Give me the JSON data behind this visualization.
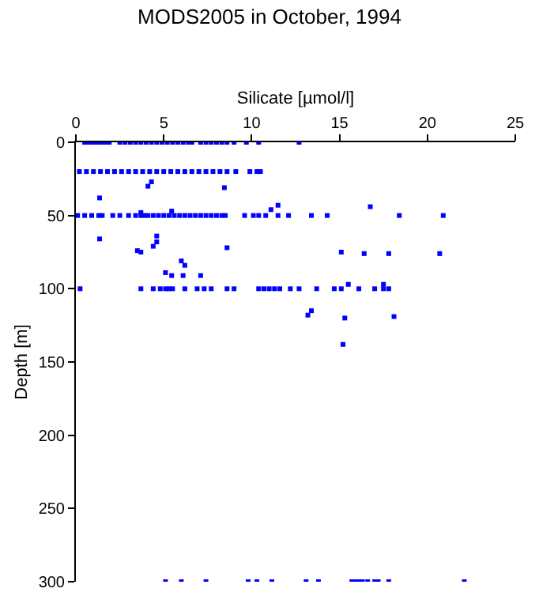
{
  "chart_data": {
    "type": "scatter",
    "title": "MODS2005 in October, 1994",
    "xlabel": "Silicate [µmol/l]",
    "ylabel": "Depth [m]",
    "xlim": [
      0,
      25
    ],
    "xticks": [
      0,
      5,
      10,
      15,
      20,
      25
    ],
    "ylim": [
      300,
      0
    ],
    "yticks": [
      0,
      50,
      100,
      150,
      200,
      250,
      300
    ],
    "marker": "square",
    "series": [
      {
        "color": "#0000ff",
        "x": [
          0.5,
          0.7,
          0.9,
          1.1,
          1.3,
          1.5,
          1.7,
          1.9,
          2.5,
          2.8,
          3.1,
          3.4,
          3.7,
          4.0,
          4.3,
          4.6,
          4.9,
          5.2,
          5.5,
          5.8,
          6.1,
          6.4,
          6.6,
          7.1,
          7.4,
          7.7,
          8.0,
          8.3,
          8.6,
          9.0,
          9.7,
          10.4,
          12.7,
          0.2,
          0.6,
          1.0,
          1.4,
          1.8,
          2.2,
          2.6,
          3.0,
          3.4,
          3.8,
          4.2,
          4.6,
          5.0,
          5.4,
          5.8,
          6.2,
          6.6,
          7.0,
          7.4,
          7.8,
          8.2,
          8.6,
          9.1,
          9.9,
          10.3,
          10.5,
          0.1,
          0.5,
          0.9,
          1.3,
          1.5,
          2.1,
          2.5,
          3.0,
          3.4,
          3.7,
          3.9,
          4.1,
          4.4,
          4.7,
          5.0,
          5.3,
          5.6,
          5.9,
          6.2,
          6.5,
          6.8,
          7.1,
          7.4,
          7.7,
          8.0,
          8.3,
          8.5,
          9.6,
          10.1,
          10.4,
          10.8,
          11.5,
          12.1,
          13.4,
          14.3,
          18.4,
          20.9,
          1.35,
          4.1,
          4.3,
          8.45,
          1.35,
          3.7,
          5.45,
          3.5,
          3.7,
          4.6,
          4.6,
          4.4,
          8.6,
          11.1,
          11.5,
          16.75,
          6.0,
          6.2,
          5.1,
          5.45,
          6.1,
          7.1,
          15.1,
          16.4,
          17.8,
          20.7,
          0.24,
          3.7,
          4.4,
          4.8,
          5.1,
          5.3,
          5.5,
          6.2,
          6.9,
          7.3,
          7.7,
          8.6,
          9.0,
          10.4,
          10.7,
          11.0,
          11.3,
          11.6,
          12.2,
          12.7,
          13.7,
          14.7,
          15.1,
          16.1,
          17.0,
          17.5,
          17.8,
          15.5,
          17.5,
          13.4,
          13.2,
          15.3,
          18.1,
          15.2,
          5.1,
          6.0,
          7.4,
          9.8,
          10.3,
          11.15,
          13.1,
          13.8,
          15.7,
          15.9,
          16.1,
          16.3,
          16.6,
          17.0,
          17.2,
          17.8,
          22.1
        ],
        "values": [
          0,
          0,
          0,
          0,
          0,
          0,
          0,
          0,
          0,
          0,
          0,
          0,
          0,
          0,
          0,
          0,
          0,
          0,
          0,
          0,
          0,
          0,
          0,
          0,
          0,
          0,
          0,
          0,
          0,
          0,
          0,
          0,
          0,
          20,
          20,
          20,
          20,
          20,
          20,
          20,
          20,
          20,
          20,
          20,
          20,
          20,
          20,
          20,
          20,
          20,
          20,
          20,
          20,
          20,
          20,
          20,
          20,
          20,
          20,
          50,
          50,
          50,
          50,
          50,
          50,
          50,
          50,
          50,
          50,
          50,
          50,
          50,
          50,
          50,
          50,
          50,
          50,
          50,
          50,
          50,
          50,
          50,
          50,
          50,
          50,
          50,
          50,
          50,
          50,
          50,
          50,
          50,
          50,
          50,
          50,
          50,
          38,
          30,
          27,
          31,
          66,
          48,
          47,
          74,
          75,
          64,
          68,
          71,
          72,
          46,
          43,
          44,
          81,
          84,
          89,
          91,
          91,
          91,
          75,
          76,
          76,
          76,
          100,
          100,
          100,
          100,
          100,
          100,
          100,
          100,
          100,
          100,
          100,
          100,
          100,
          100,
          100,
          100,
          100,
          100,
          100,
          100,
          100,
          100,
          100,
          100,
          100,
          100,
          100,
          97,
          97,
          115,
          118,
          120,
          119,
          138,
          300,
          300,
          300,
          300,
          300,
          300,
          300,
          300,
          300,
          300,
          300,
          300,
          300,
          300,
          300,
          300,
          300
        ]
      }
    ]
  }
}
